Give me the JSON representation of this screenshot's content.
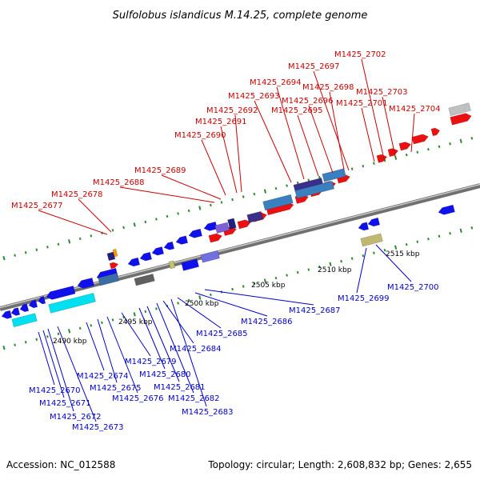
{
  "title": "Sulfolobus islandicus M.14.25, complete genome",
  "footer": {
    "accession": "Accession: NC_012588",
    "summary": "Topology: circular; Length: 2,608,832 bp; Genes: 2,655"
  },
  "colors": {
    "top_label": "#cc0000",
    "bottom_label": "#0000cc",
    "backbone": "#888888",
    "tick": "#2e8b2e"
  },
  "kbp_labels": [
    "2490 kbp",
    "2495 kbp",
    "2500 kbp",
    "2505 kbp",
    "2510 kbp",
    "2515 kbp"
  ],
  "genes_top": [
    "M1425_2677",
    "M1425_2678",
    "M1425_2688",
    "M1425_2689",
    "M1425_2690",
    "M1425_2691",
    "M1425_2692",
    "M1425_2693",
    "M1425_2694",
    "M1425_2695",
    "M1425_2696",
    "M1425_2697",
    "M1425_2698",
    "M1425_2701",
    "M1425_2702",
    "M1425_2703",
    "M1425_2704"
  ],
  "genes_bottom": [
    "M1425_2670",
    "M1425_2671",
    "M1425_2672",
    "M1425_2673",
    "M1425_2674",
    "M1425_2675",
    "M1425_2676",
    "M1425_2679",
    "M1425_2680",
    "M1425_2681",
    "M1425_2682",
    "M1425_2683",
    "M1425_2684",
    "M1425_2685",
    "M1425_2686",
    "M1425_2687",
    "M1425_2699",
    "M1425_2700"
  ]
}
